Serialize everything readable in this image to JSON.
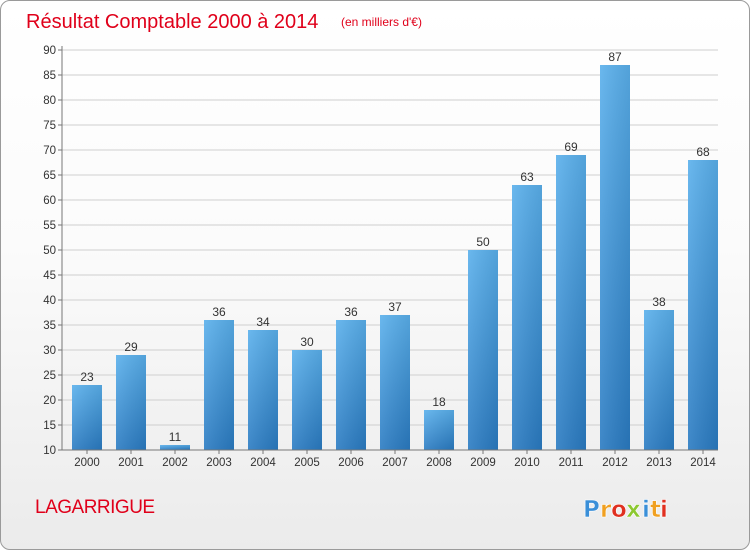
{
  "chart_data": {
    "type": "bar",
    "title": "Résultat Comptable 2000 à 2014",
    "subtitle": "(en milliers d'€)",
    "xlabel": "",
    "ylabel": "",
    "categories": [
      "2000",
      "2001",
      "2002",
      "2003",
      "2004",
      "2005",
      "2006",
      "2007",
      "2008",
      "2009",
      "2010",
      "2011",
      "2012",
      "2013",
      "2014"
    ],
    "values": [
      23,
      29,
      11,
      36,
      34,
      30,
      36,
      37,
      18,
      50,
      63,
      69,
      87,
      38,
      68
    ],
    "ylim": [
      10,
      90
    ],
    "yticks": [
      10,
      15,
      20,
      25,
      30,
      35,
      40,
      45,
      50,
      55,
      60,
      65,
      70,
      75,
      80,
      85,
      90
    ],
    "grid": true,
    "legend": "none",
    "data_labels": true
  },
  "commune_name": "LAGARRIGUE",
  "brand": {
    "letters": [
      "P",
      "r",
      "o",
      "x",
      "i",
      "t",
      "i"
    ]
  },
  "colors": {
    "title": "#e0001a",
    "bar_top": "#5ab0ec",
    "bar_bottom": "#2a7bc2",
    "grid": "#cfcfcf",
    "axis_text": "#333333",
    "brand_letters": [
      "#3a8fd8",
      "#f0a020",
      "#e03020",
      "#8cc830",
      "#3a8fd8",
      "#f0a020",
      "#e03020"
    ]
  }
}
